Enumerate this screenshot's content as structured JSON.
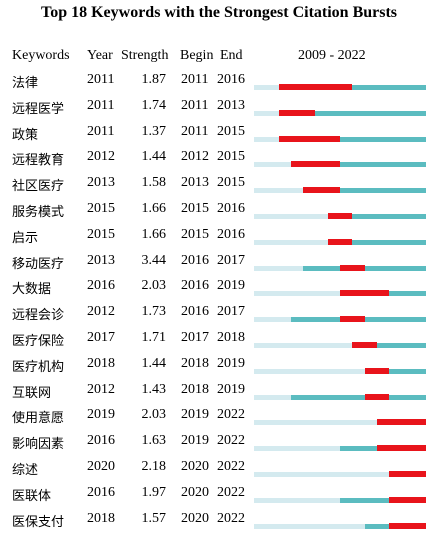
{
  "chart_data": {
    "type": "burst-timeline",
    "title": "Top 18 Keywords with the Strongest Citation Bursts",
    "columns": [
      "Keywords",
      "Year",
      "Strength",
      "Begin",
      "End"
    ],
    "range_label": "2009 - 2022",
    "x_range": [
      2009,
      2022
    ],
    "colors": {
      "before": "#d4eaef",
      "active": "#5bbcc0",
      "burst": "#e8141b"
    },
    "rows": [
      {
        "keyword": "法律",
        "year": "2011",
        "strength": "1.87",
        "begin": "2011",
        "end": "2016"
      },
      {
        "keyword": "远程医学",
        "year": "2011",
        "strength": "1.74",
        "begin": "2011",
        "end": "2013"
      },
      {
        "keyword": "政策",
        "year": "2011",
        "strength": "1.37",
        "begin": "2011",
        "end": "2015"
      },
      {
        "keyword": "远程教育",
        "year": "2012",
        "strength": "1.44",
        "begin": "2012",
        "end": "2015"
      },
      {
        "keyword": "社区医疗",
        "year": "2013",
        "strength": "1.58",
        "begin": "2013",
        "end": "2015"
      },
      {
        "keyword": "服务模式",
        "year": "2015",
        "strength": "1.66",
        "begin": "2015",
        "end": "2016"
      },
      {
        "keyword": "启示",
        "year": "2015",
        "strength": "1.66",
        "begin": "2015",
        "end": "2016"
      },
      {
        "keyword": "移动医疗",
        "year": "2013",
        "strength": "3.44",
        "begin": "2016",
        "end": "2017"
      },
      {
        "keyword": "大数据",
        "year": "2016",
        "strength": "2.03",
        "begin": "2016",
        "end": "2019"
      },
      {
        "keyword": "远程会诊",
        "year": "2012",
        "strength": "1.73",
        "begin": "2016",
        "end": "2017"
      },
      {
        "keyword": "医疗保险",
        "year": "2017",
        "strength": "1.71",
        "begin": "2017",
        "end": "2018"
      },
      {
        "keyword": "医疗机构",
        "year": "2018",
        "strength": "1.44",
        "begin": "2018",
        "end": "2019"
      },
      {
        "keyword": "互联网",
        "year": "2012",
        "strength": "1.43",
        "begin": "2018",
        "end": "2019"
      },
      {
        "keyword": "使用意愿",
        "year": "2019",
        "strength": "2.03",
        "begin": "2019",
        "end": "2022"
      },
      {
        "keyword": "影响因素",
        "year": "2016",
        "strength": "1.63",
        "begin": "2019",
        "end": "2022"
      },
      {
        "keyword": "综述",
        "year": "2020",
        "strength": "2.18",
        "begin": "2020",
        "end": "2022"
      },
      {
        "keyword": "医联体",
        "year": "2016",
        "strength": "1.97",
        "begin": "2020",
        "end": "2022"
      },
      {
        "keyword": "医保支付",
        "year": "2018",
        "strength": "1.57",
        "begin": "2020",
        "end": "2022"
      }
    ]
  }
}
